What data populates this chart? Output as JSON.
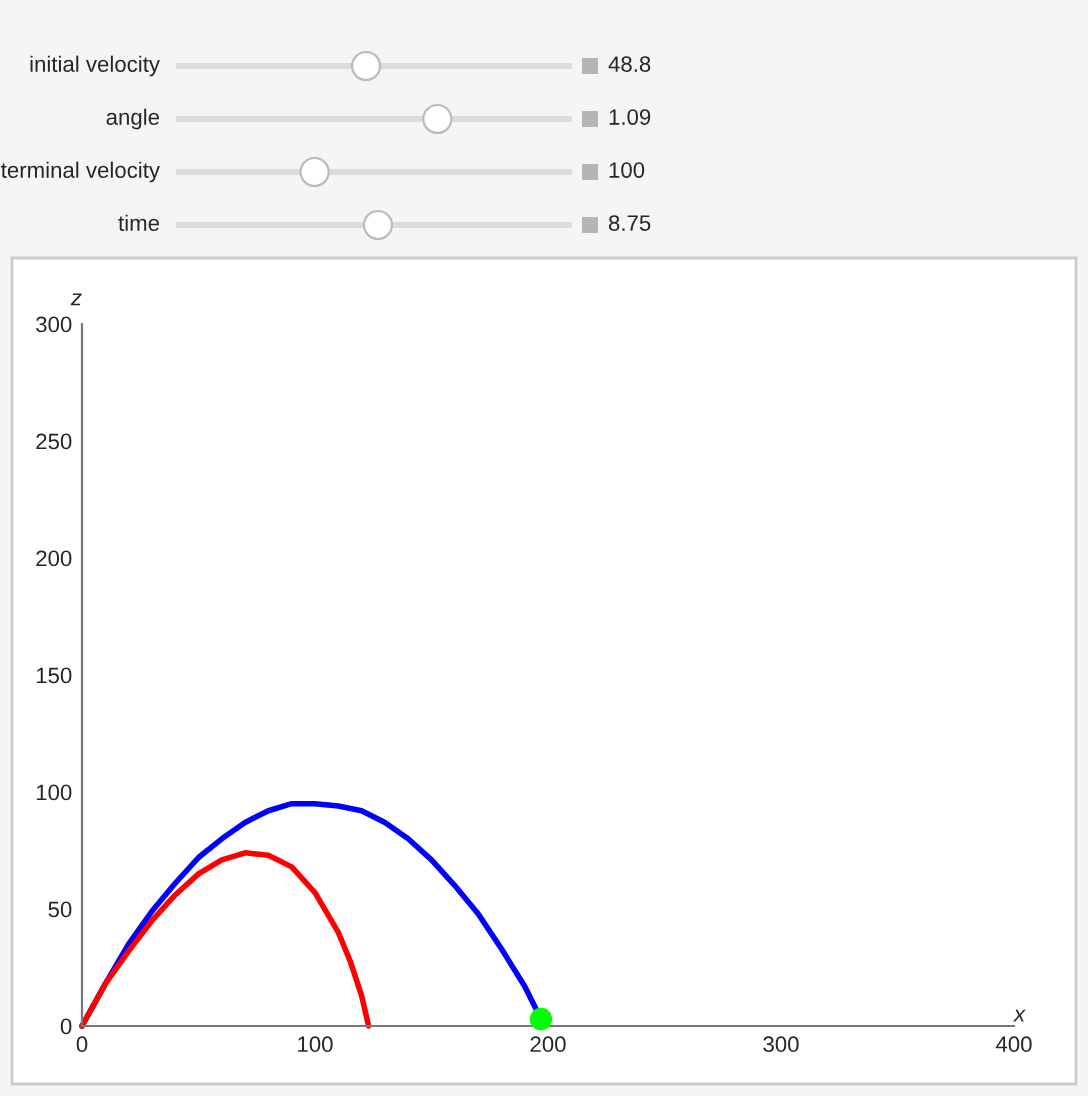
{
  "chart_data": [
    {
      "type": "other",
      "annotations": [
        "initial velocity",
        "48.8",
        "angle",
        "1.09",
        "terminal velocity",
        "100",
        "time",
        "8.75"
      ]
    },
    {
      "type": "line",
      "xlabel": "x",
      "ylabel": "z",
      "xlim": [
        0,
        400
      ],
      "ylim": [
        0,
        300
      ],
      "xticks": [
        0,
        100,
        200,
        300,
        400
      ],
      "yticks": [
        0,
        50,
        100,
        150,
        200,
        250,
        300
      ],
      "grid": false,
      "legend": false,
      "marker": "none",
      "line_style": "solid",
      "series": [
        {
          "type": "line",
          "color": "#0000ff",
          "x": [
            0,
            10,
            20,
            30,
            40,
            50,
            60,
            70,
            80,
            90,
            100,
            110,
            120,
            130,
            140,
            150,
            160,
            170,
            180,
            190,
            197
          ],
          "values": [
            0,
            18,
            35,
            49,
            61,
            72,
            80,
            87,
            92,
            95,
            95,
            94,
            92,
            87,
            80,
            71,
            60,
            48,
            33,
            17,
            3
          ]
        },
        {
          "type": "line",
          "color": "#ff0000",
          "x": [
            0,
            10,
            20,
            30,
            40,
            50,
            60,
            70,
            80,
            90,
            100,
            110,
            115,
            120,
            123
          ],
          "values": [
            0,
            18,
            32,
            45,
            56,
            65,
            71,
            74,
            73,
            68,
            57,
            40,
            28,
            13,
            0
          ]
        },
        {
          "type": "scatter",
          "color": "#00ff00",
          "marker": "circle",
          "x": [
            197
          ],
          "values": [
            3
          ]
        }
      ]
    }
  ]
}
